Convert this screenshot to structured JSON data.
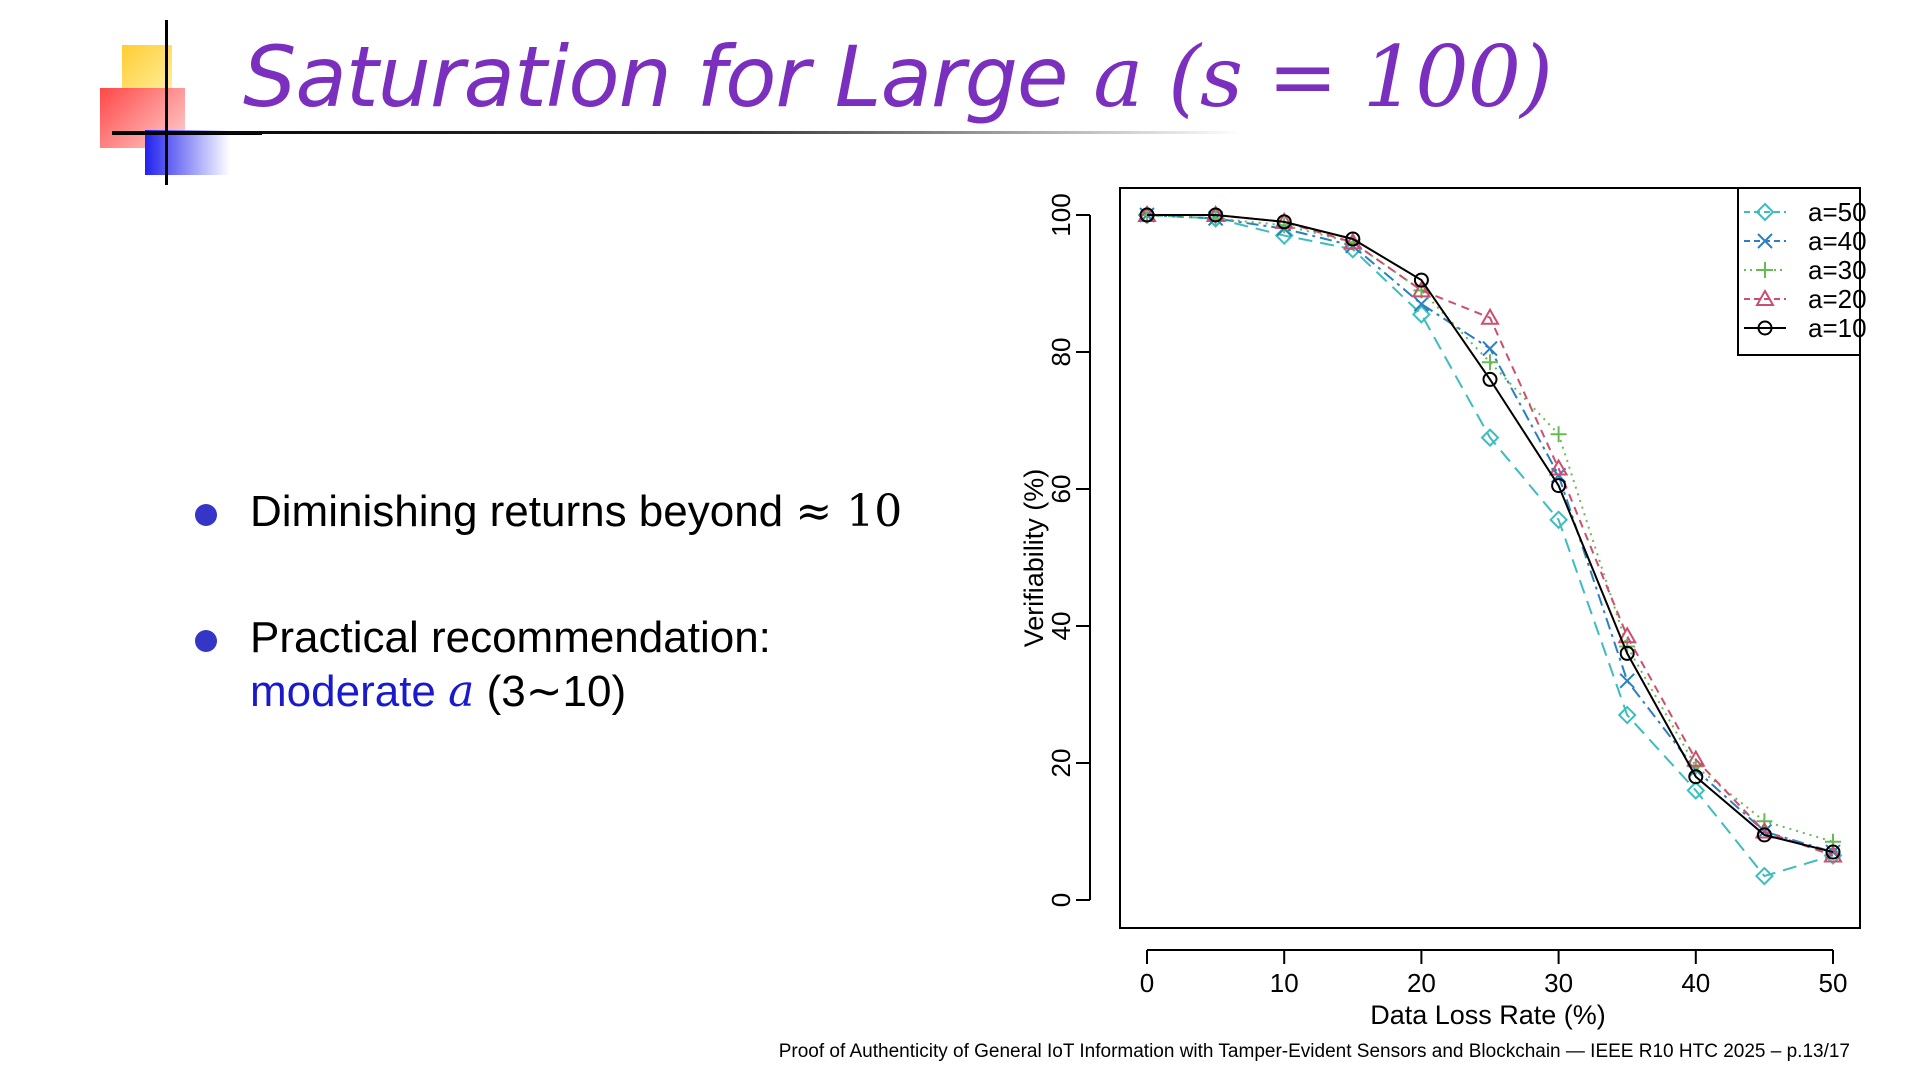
{
  "slide": {
    "title_text": "Saturation for Large ",
    "title_math_a": "a",
    "title_math_paren": " (s = 100)",
    "bullets": [
      {
        "text": "Diminishing returns beyond ",
        "math": "≈ 10"
      },
      {
        "text": "Practical recommendation:",
        "blue_text": "moderate ",
        "math_var": "a",
        "tail": " (3∼10)"
      }
    ],
    "footer": "Proof of Authenticity of General IoT Information with Tamper-Evident Sensors and Blockchain — IEEE R10 HTC 2025 – p.13/17"
  },
  "colors": {
    "title": "#7b2fbe",
    "bullet_dot": "#3535c8",
    "highlight": "#1a1acc"
  },
  "chart_data": {
    "type": "line",
    "xlabel": "Data Loss Rate (%)",
    "ylabel": "Verifiability (%)",
    "xlim": [
      0,
      50
    ],
    "ylim": [
      0,
      100
    ],
    "x_ticks": [
      0,
      10,
      20,
      30,
      40,
      50
    ],
    "y_ticks": [
      0,
      20,
      40,
      60,
      80,
      100
    ],
    "legend_position": "top-right",
    "x": [
      0,
      5,
      10,
      15,
      20,
      25,
      30,
      35,
      40,
      45,
      50
    ],
    "series": [
      {
        "name": "a=50",
        "color": "#3dbdbd",
        "marker": "diamond",
        "dash": "dashed",
        "values": [
          100,
          99.5,
          97,
          95,
          85.5,
          67.5,
          55.5,
          27,
          16,
          3.5,
          6.5
        ]
      },
      {
        "name": "a=40",
        "color": "#2c7fc0",
        "marker": "x",
        "dash": "dashdot",
        "values": [
          100,
          99.5,
          98,
          95.5,
          87,
          80.5,
          62,
          32,
          19,
          10,
          7
        ]
      },
      {
        "name": "a=30",
        "color": "#66bb55",
        "marker": "plus",
        "dash": "dotted",
        "values": [
          100,
          99.5,
          98.5,
          96,
          89,
          78.5,
          68,
          37,
          19.5,
          11.5,
          8.5
        ]
      },
      {
        "name": "a=20",
        "color": "#cc4f6e",
        "marker": "triangle",
        "dash": "shortdash",
        "values": [
          100,
          100,
          99,
          96,
          89,
          85,
          63,
          38.5,
          20.5,
          10,
          6.5
        ]
      },
      {
        "name": "a=10",
        "color": "#000000",
        "marker": "circle",
        "dash": "solid",
        "values": [
          100,
          100,
          99,
          96.5,
          90.5,
          76,
          60.5,
          36,
          18,
          9.5,
          7
        ]
      }
    ]
  }
}
